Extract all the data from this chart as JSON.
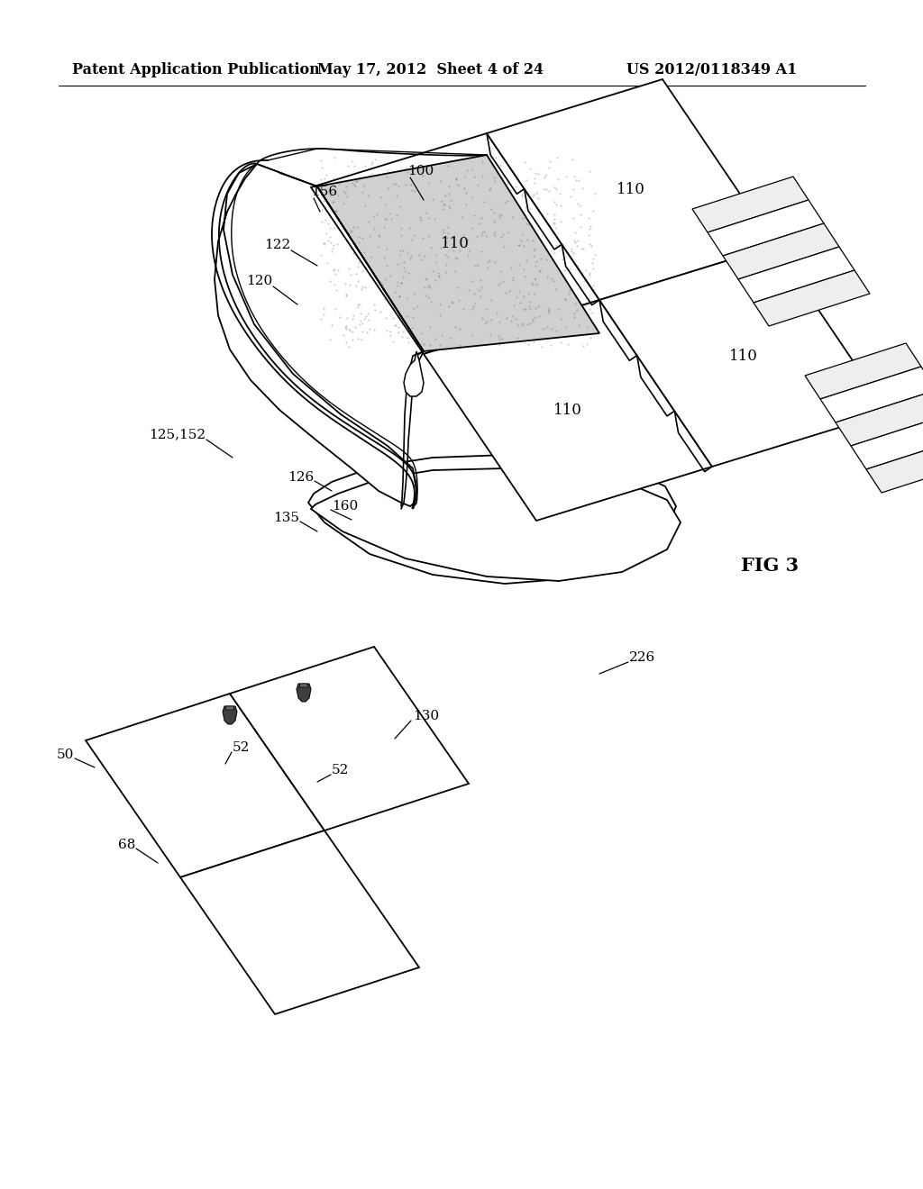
{
  "header_left": "Patent Application Publication",
  "header_center": "May 17, 2012  Sheet 4 of 24",
  "header_right": "US 2012/0118349 A1",
  "fig_label": "FIG 3",
  "background_color": "#ffffff",
  "line_color": "#000000",
  "header_fontsize": 11.5,
  "label_fontsize": 11,
  "fig_label_fontsize": 15
}
